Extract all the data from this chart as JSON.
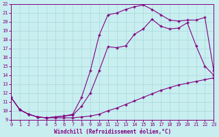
{
  "xlabel": "Windchill (Refroidissement éolien,°C)",
  "xlim": [
    0,
    23
  ],
  "ylim": [
    9,
    22
  ],
  "xticks": [
    0,
    1,
    2,
    3,
    4,
    5,
    6,
    7,
    8,
    9,
    10,
    11,
    12,
    13,
    14,
    15,
    16,
    17,
    18,
    19,
    20,
    21,
    22,
    23
  ],
  "yticks": [
    9,
    10,
    11,
    12,
    13,
    14,
    15,
    16,
    17,
    18,
    19,
    20,
    21,
    22
  ],
  "bg_color": "#c8eef0",
  "line_color": "#800080",
  "grid_color": "#a8d8da",
  "line1_x": [
    0,
    1,
    2,
    3,
    4,
    5,
    6,
    7,
    8,
    9,
    10,
    11,
    12,
    13,
    14,
    15,
    16,
    17,
    18,
    19,
    20,
    21,
    22,
    23
  ],
  "line1_y": [
    11.5,
    10.1,
    9.6,
    9.3,
    9.2,
    9.2,
    9.2,
    9.2,
    9.3,
    9.4,
    9.6,
    10.0,
    10.3,
    10.7,
    11.1,
    11.5,
    11.9,
    12.3,
    12.6,
    12.9,
    13.1,
    13.3,
    13.5,
    13.7
  ],
  "line2_x": [
    0,
    1,
    2,
    3,
    4,
    5,
    6,
    7,
    8,
    9,
    10,
    11,
    12,
    13,
    14,
    15,
    16,
    17,
    18,
    19,
    20,
    21,
    22,
    23
  ],
  "line2_y": [
    11.5,
    10.1,
    9.6,
    9.3,
    9.2,
    9.3,
    9.4,
    9.5,
    10.5,
    12.0,
    14.5,
    17.2,
    17.1,
    17.3,
    18.6,
    19.2,
    20.3,
    19.5,
    19.2,
    19.3,
    19.9,
    17.3,
    15.0,
    14.0
  ],
  "line3_x": [
    0,
    1,
    2,
    3,
    4,
    5,
    6,
    7,
    8,
    9,
    10,
    11,
    12,
    13,
    14,
    15,
    16,
    17,
    18,
    19,
    20,
    21,
    22,
    23
  ],
  "line3_y": [
    11.5,
    10.1,
    9.6,
    9.3,
    9.2,
    9.3,
    9.4,
    9.6,
    11.5,
    14.5,
    18.5,
    20.8,
    21.0,
    21.4,
    21.7,
    21.9,
    21.4,
    20.8,
    20.2,
    20.1,
    20.2,
    20.2,
    20.5,
    14.5
  ]
}
